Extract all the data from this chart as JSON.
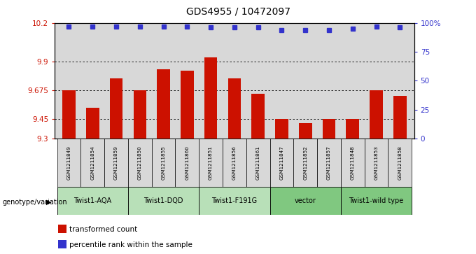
{
  "title": "GDS4955 / 10472097",
  "samples": [
    "GSM1211849",
    "GSM1211854",
    "GSM1211859",
    "GSM1211850",
    "GSM1211855",
    "GSM1211860",
    "GSM1211851",
    "GSM1211856",
    "GSM1211861",
    "GSM1211847",
    "GSM1211852",
    "GSM1211857",
    "GSM1211848",
    "GSM1211853",
    "GSM1211858"
  ],
  "bar_values": [
    9.675,
    9.54,
    9.77,
    9.675,
    9.84,
    9.83,
    9.93,
    9.77,
    9.65,
    9.45,
    9.42,
    9.45,
    9.45,
    9.675,
    9.63
  ],
  "percentile_values": [
    97,
    97,
    97,
    97,
    97,
    97,
    96,
    96,
    96,
    94,
    94,
    94,
    95,
    97,
    96
  ],
  "groups": [
    {
      "label": "Twist1-AQA",
      "indices": [
        0,
        1,
        2
      ],
      "color": "#b8e0b8"
    },
    {
      "label": "Twist1-DQD",
      "indices": [
        3,
        4,
        5
      ],
      "color": "#b8e0b8"
    },
    {
      "label": "Twist1-F191G",
      "indices": [
        6,
        7,
        8
      ],
      "color": "#b8e0b8"
    },
    {
      "label": "vector",
      "indices": [
        9,
        10,
        11
      ],
      "color": "#80c880"
    },
    {
      "label": "Twist1-wild type",
      "indices": [
        12,
        13,
        14
      ],
      "color": "#80c880"
    }
  ],
  "ylim_left": [
    9.3,
    10.2
  ],
  "yticks_left": [
    9.3,
    9.45,
    9.675,
    9.9,
    10.2
  ],
  "ylim_right": [
    0,
    100
  ],
  "yticks_right": [
    0,
    25,
    50,
    75,
    100
  ],
  "bar_color": "#cc1100",
  "dot_color": "#3333cc",
  "bg_color": "#d8d8d8",
  "grid_color": "#000000",
  "title_fontsize": 10,
  "genotype_label": "genotype/variation",
  "legend_items": [
    {
      "color": "#cc1100",
      "label": "transformed count"
    },
    {
      "color": "#3333cc",
      "label": "percentile rank within the sample"
    }
  ]
}
